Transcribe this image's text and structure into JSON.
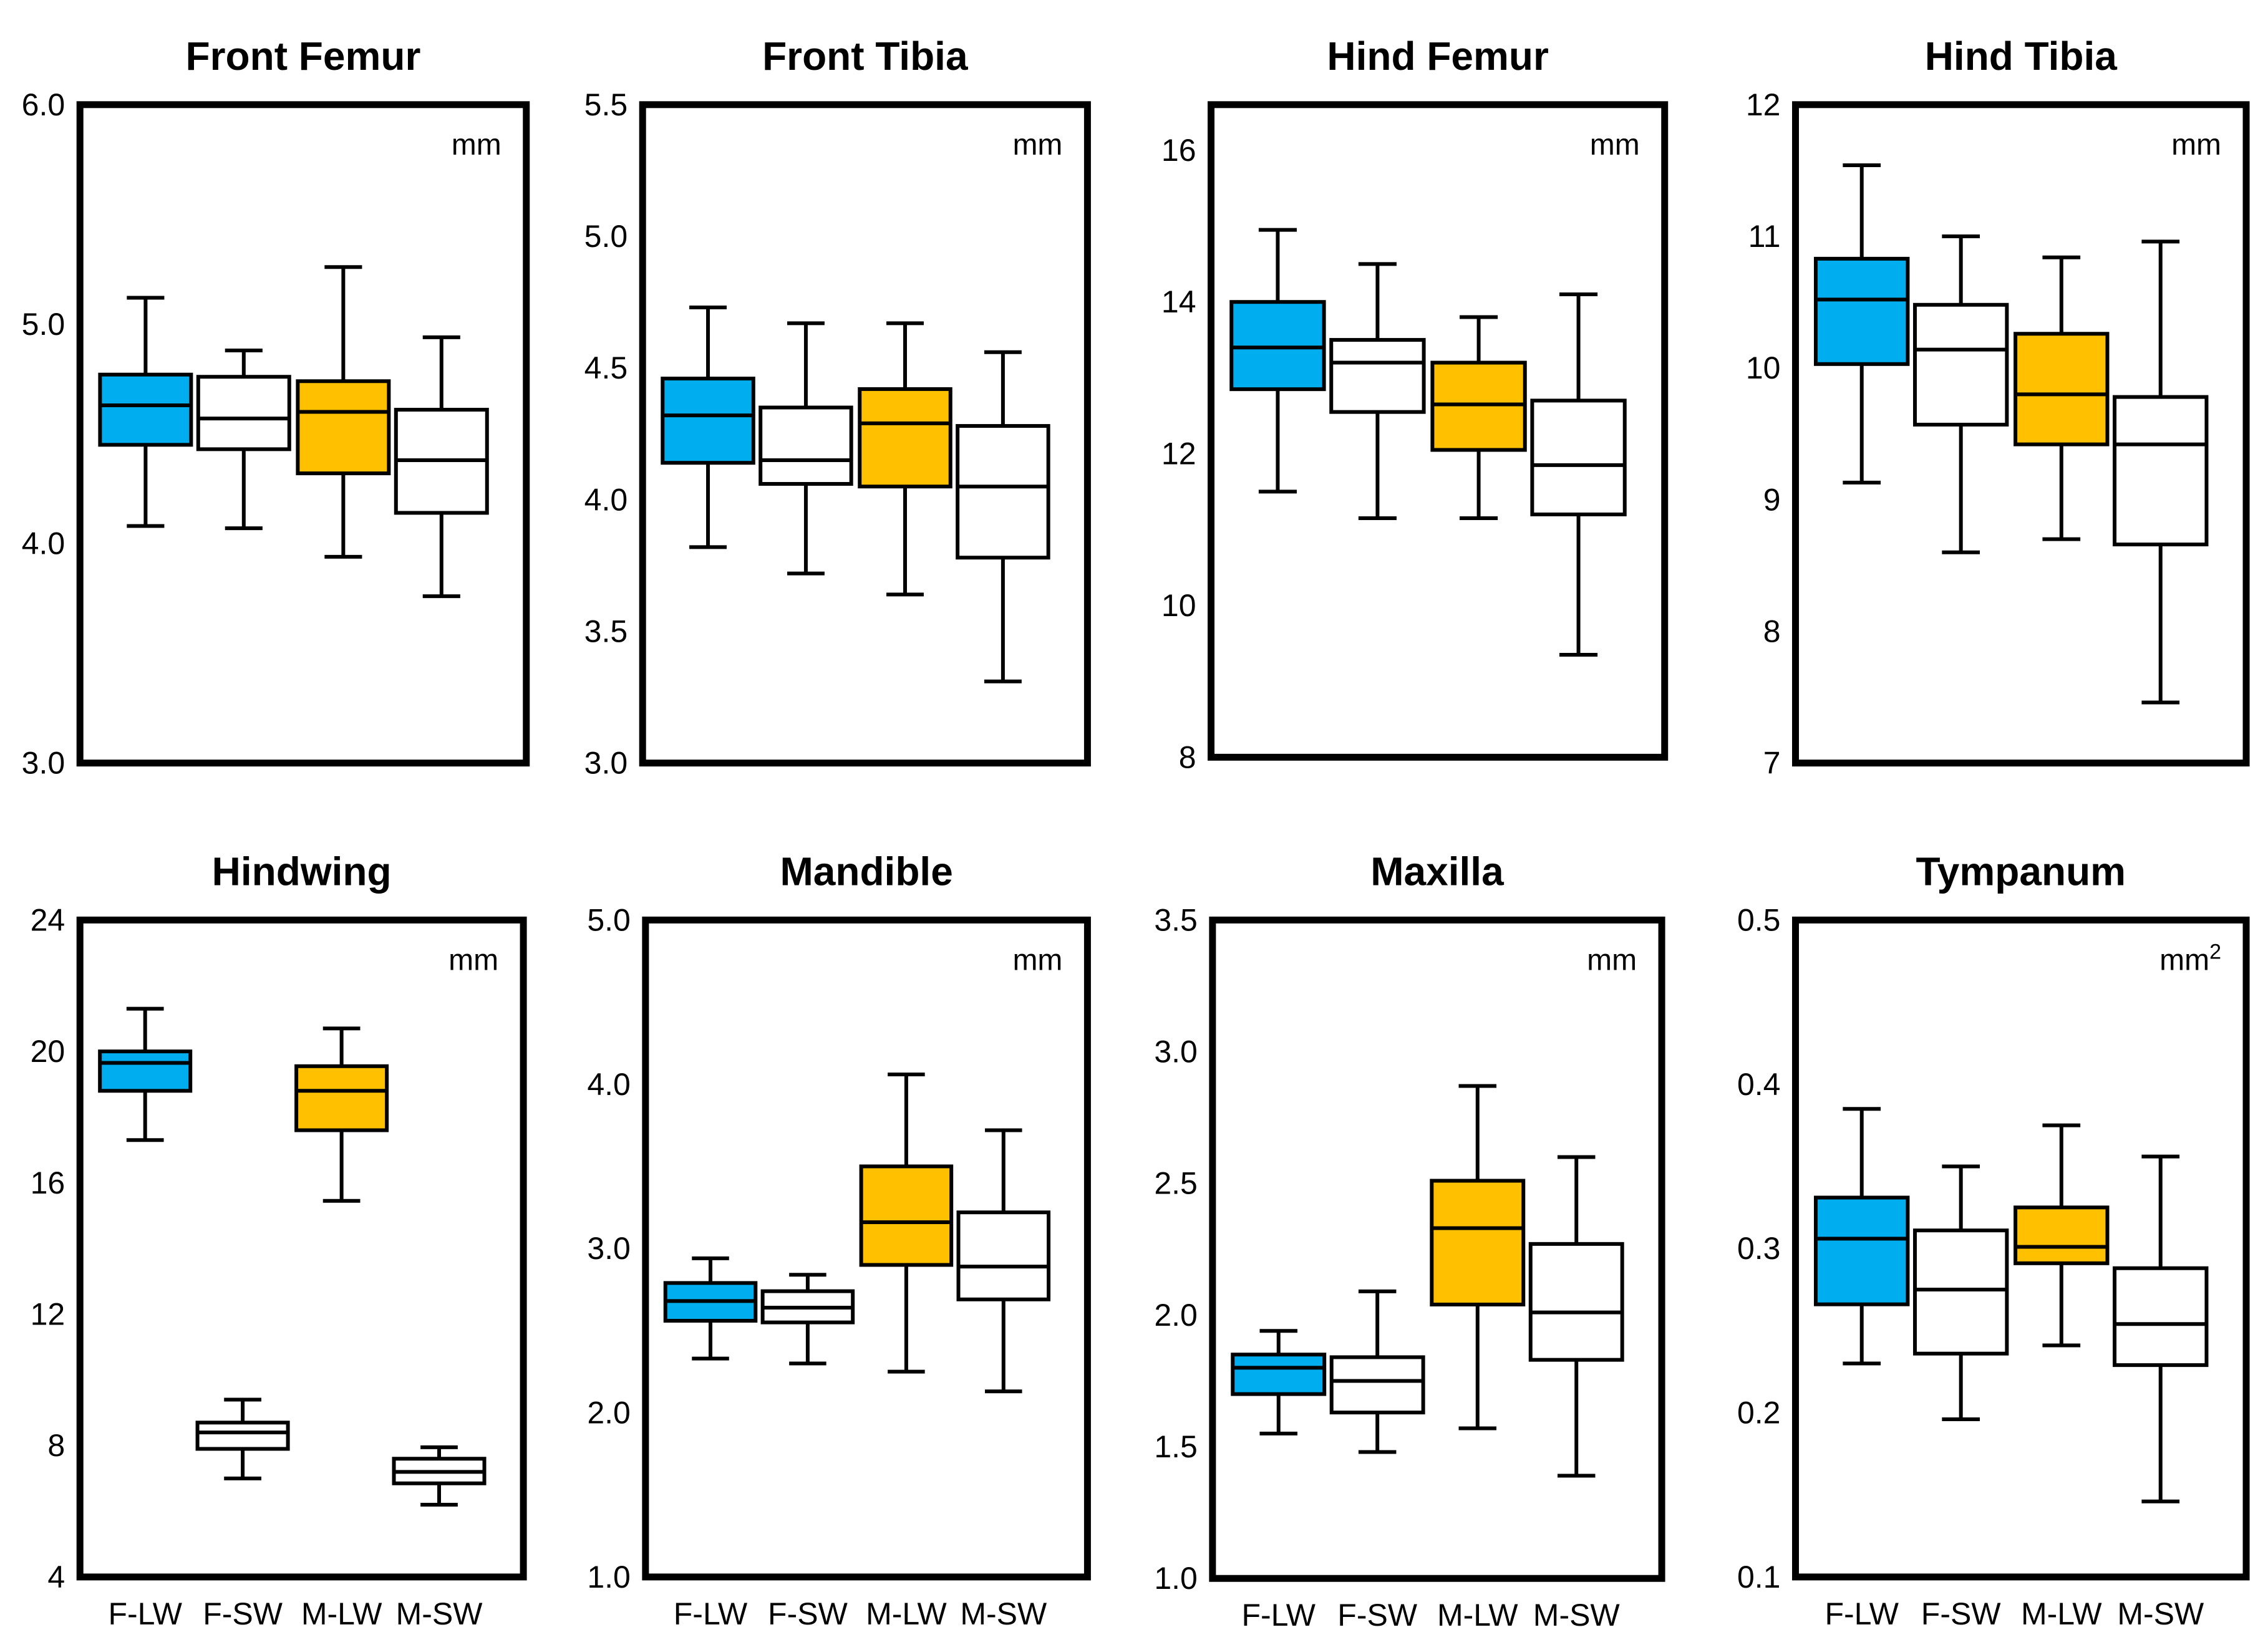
{
  "colors": {
    "F-LW": "#00AEEF",
    "F-SW": "#FFFFFF",
    "M-LW": "#FFC000",
    "M-SW": "#FFFFFF",
    "frame": "#000000"
  },
  "chart_data": [
    {
      "type": "box",
      "title": "Front Femur",
      "unit": "mm",
      "ylim": [
        3.0,
        6.0
      ],
      "ticks": [
        3.0,
        4.0,
        5.0,
        6.0
      ],
      "tick_labels": [
        "3.0",
        "4.0",
        "5.0",
        "6.0"
      ],
      "categories": [
        "F-LW",
        "F-SW",
        "M-LW",
        "M-SW"
      ],
      "show_category_labels": false,
      "boxes": [
        {
          "group": "F-LW",
          "min": 4.08,
          "q1": 4.45,
          "median": 4.63,
          "q3": 4.77,
          "max": 5.12
        },
        {
          "group": "F-SW",
          "min": 4.07,
          "q1": 4.43,
          "median": 4.57,
          "q3": 4.76,
          "max": 4.88
        },
        {
          "group": "M-LW",
          "min": 3.94,
          "q1": 4.32,
          "median": 4.6,
          "q3": 4.74,
          "max": 5.26
        },
        {
          "group": "M-SW",
          "min": 3.76,
          "q1": 4.14,
          "median": 4.38,
          "q3": 4.61,
          "max": 4.94
        }
      ]
    },
    {
      "type": "box",
      "title": "Front Tibia",
      "unit": "mm",
      "ylim": [
        3.0,
        5.5
      ],
      "ticks": [
        3.0,
        3.5,
        4.0,
        4.5,
        5.0,
        5.5
      ],
      "tick_labels": [
        "3.0",
        "3.5",
        "4.0",
        "4.5",
        "5.0",
        "5.5"
      ],
      "categories": [
        "F-LW",
        "F-SW",
        "M-LW",
        "M-SW"
      ],
      "show_category_labels": false,
      "boxes": [
        {
          "group": "F-LW",
          "min": 3.82,
          "q1": 4.14,
          "median": 4.32,
          "q3": 4.46,
          "max": 4.73
        },
        {
          "group": "F-SW",
          "min": 3.72,
          "q1": 4.06,
          "median": 4.15,
          "q3": 4.35,
          "max": 4.67
        },
        {
          "group": "M-LW",
          "min": 3.64,
          "q1": 4.05,
          "median": 4.29,
          "q3": 4.42,
          "max": 4.67
        },
        {
          "group": "M-SW",
          "min": 3.31,
          "q1": 3.78,
          "median": 4.05,
          "q3": 4.28,
          "max": 4.56
        }
      ]
    },
    {
      "type": "box",
      "title": "Hind Femur",
      "unit": "mm",
      "ylim": [
        8,
        16.6
      ],
      "ticks": [
        8,
        10,
        12,
        14,
        16
      ],
      "tick_labels": [
        "8",
        "10",
        "12",
        "14",
        "16"
      ],
      "categories": [
        "F-LW",
        "F-SW",
        "M-LW",
        "M-SW"
      ],
      "show_category_labels": false,
      "boxes": [
        {
          "group": "F-LW",
          "min": 11.5,
          "q1": 12.85,
          "median": 13.4,
          "q3": 14.0,
          "max": 14.95
        },
        {
          "group": "F-SW",
          "min": 11.15,
          "q1": 12.55,
          "median": 13.2,
          "q3": 13.5,
          "max": 14.5
        },
        {
          "group": "M-LW",
          "min": 11.15,
          "q1": 12.05,
          "median": 12.65,
          "q3": 13.2,
          "max": 13.8
        },
        {
          "group": "M-SW",
          "min": 9.35,
          "q1": 11.2,
          "median": 11.85,
          "q3": 12.7,
          "max": 14.1
        }
      ]
    },
    {
      "type": "box",
      "title": "Hind Tibia",
      "unit": "mm",
      "ylim": [
        7,
        12
      ],
      "ticks": [
        7,
        8,
        9,
        10,
        11,
        12
      ],
      "tick_labels": [
        "7",
        "8",
        "9",
        "10",
        "11",
        "12"
      ],
      "categories": [
        "F-LW",
        "F-SW",
        "M-LW",
        "M-SW"
      ],
      "show_category_labels": false,
      "boxes": [
        {
          "group": "F-LW",
          "min": 9.13,
          "q1": 10.03,
          "median": 10.52,
          "q3": 10.83,
          "max": 11.54
        },
        {
          "group": "F-SW",
          "min": 8.6,
          "q1": 9.57,
          "median": 10.14,
          "q3": 10.48,
          "max": 11.0
        },
        {
          "group": "M-LW",
          "min": 8.7,
          "q1": 9.42,
          "median": 9.8,
          "q3": 10.26,
          "max": 10.84
        },
        {
          "group": "M-SW",
          "min": 7.46,
          "q1": 8.66,
          "median": 9.42,
          "q3": 9.78,
          "max": 10.96
        }
      ]
    },
    {
      "type": "box",
      "title": "Hindwing",
      "unit": "mm",
      "ylim": [
        4,
        24
      ],
      "ticks": [
        4,
        8,
        12,
        16,
        20,
        24
      ],
      "tick_labels": [
        "4",
        "8",
        "12",
        "16",
        "20",
        "24"
      ],
      "categories": [
        "F-LW",
        "F-SW",
        "M-LW",
        "M-SW"
      ],
      "show_category_labels": true,
      "boxes": [
        {
          "group": "F-LW",
          "min": 17.3,
          "q1": 18.8,
          "median": 19.65,
          "q3": 20.0,
          "max": 21.3
        },
        {
          "group": "F-SW",
          "min": 7.0,
          "q1": 7.9,
          "median": 8.4,
          "q3": 8.7,
          "max": 9.4
        },
        {
          "group": "M-LW",
          "min": 15.45,
          "q1": 17.6,
          "median": 18.8,
          "q3": 19.55,
          "max": 20.7
        },
        {
          "group": "M-SW",
          "min": 6.2,
          "q1": 6.85,
          "median": 7.2,
          "q3": 7.6,
          "max": 7.95
        }
      ]
    },
    {
      "type": "box",
      "title": "Mandible",
      "unit": "mm",
      "ylim": [
        1.0,
        5.0
      ],
      "ticks": [
        1.0,
        2.0,
        3.0,
        4.0,
        5.0
      ],
      "tick_labels": [
        "1.0",
        "2.0",
        "3.0",
        "4.0",
        "5.0"
      ],
      "categories": [
        "F-LW",
        "F-SW",
        "M-LW",
        "M-SW"
      ],
      "show_category_labels": true,
      "boxes": [
        {
          "group": "F-LW",
          "min": 2.33,
          "q1": 2.56,
          "median": 2.68,
          "q3": 2.79,
          "max": 2.94
        },
        {
          "group": "F-SW",
          "min": 2.3,
          "q1": 2.55,
          "median": 2.64,
          "q3": 2.74,
          "max": 2.84
        },
        {
          "group": "M-LW",
          "min": 2.25,
          "q1": 2.9,
          "median": 3.16,
          "q3": 3.5,
          "max": 4.06
        },
        {
          "group": "M-SW",
          "min": 2.13,
          "q1": 2.69,
          "median": 2.89,
          "q3": 3.22,
          "max": 3.72
        }
      ]
    },
    {
      "type": "box",
      "title": "Maxilla",
      "unit": "mm",
      "ylim": [
        1.0,
        3.5
      ],
      "ticks": [
        1.0,
        1.5,
        2.0,
        2.5,
        3.0,
        3.5
      ],
      "tick_labels": [
        "1.0",
        "1.5",
        "2.0",
        "2.5",
        "3.0",
        "3.5"
      ],
      "categories": [
        "F-LW",
        "F-SW",
        "M-LW",
        "M-SW"
      ],
      "show_category_labels": true,
      "boxes": [
        {
          "group": "F-LW",
          "min": 1.55,
          "q1": 1.7,
          "median": 1.8,
          "q3": 1.85,
          "max": 1.94
        },
        {
          "group": "F-SW",
          "min": 1.48,
          "q1": 1.63,
          "median": 1.75,
          "q3": 1.84,
          "max": 2.09
        },
        {
          "group": "M-LW",
          "min": 1.57,
          "q1": 2.04,
          "median": 2.33,
          "q3": 2.51,
          "max": 2.87
        },
        {
          "group": "M-SW",
          "min": 1.39,
          "q1": 1.83,
          "median": 2.01,
          "q3": 2.27,
          "max": 2.6
        }
      ]
    },
    {
      "type": "box",
      "title": "Tympanum",
      "unit": "mm",
      "unit_superscript": "2",
      "ylim": [
        0.1,
        0.5
      ],
      "ticks": [
        0.1,
        0.2,
        0.3,
        0.4,
        0.5
      ],
      "tick_labels": [
        "0.1",
        "0.2",
        "0.3",
        "0.4",
        "0.5"
      ],
      "categories": [
        "F-LW",
        "F-SW",
        "M-LW",
        "M-SW"
      ],
      "show_category_labels": true,
      "boxes": [
        {
          "group": "F-LW",
          "min": 0.23,
          "q1": 0.266,
          "median": 0.306,
          "q3": 0.331,
          "max": 0.385
        },
        {
          "group": "F-SW",
          "min": 0.196,
          "q1": 0.236,
          "median": 0.275,
          "q3": 0.311,
          "max": 0.35
        },
        {
          "group": "M-LW",
          "min": 0.241,
          "q1": 0.291,
          "median": 0.301,
          "q3": 0.325,
          "max": 0.375
        },
        {
          "group": "M-SW",
          "min": 0.146,
          "q1": 0.229,
          "median": 0.254,
          "q3": 0.288,
          "max": 0.356
        }
      ]
    }
  ]
}
